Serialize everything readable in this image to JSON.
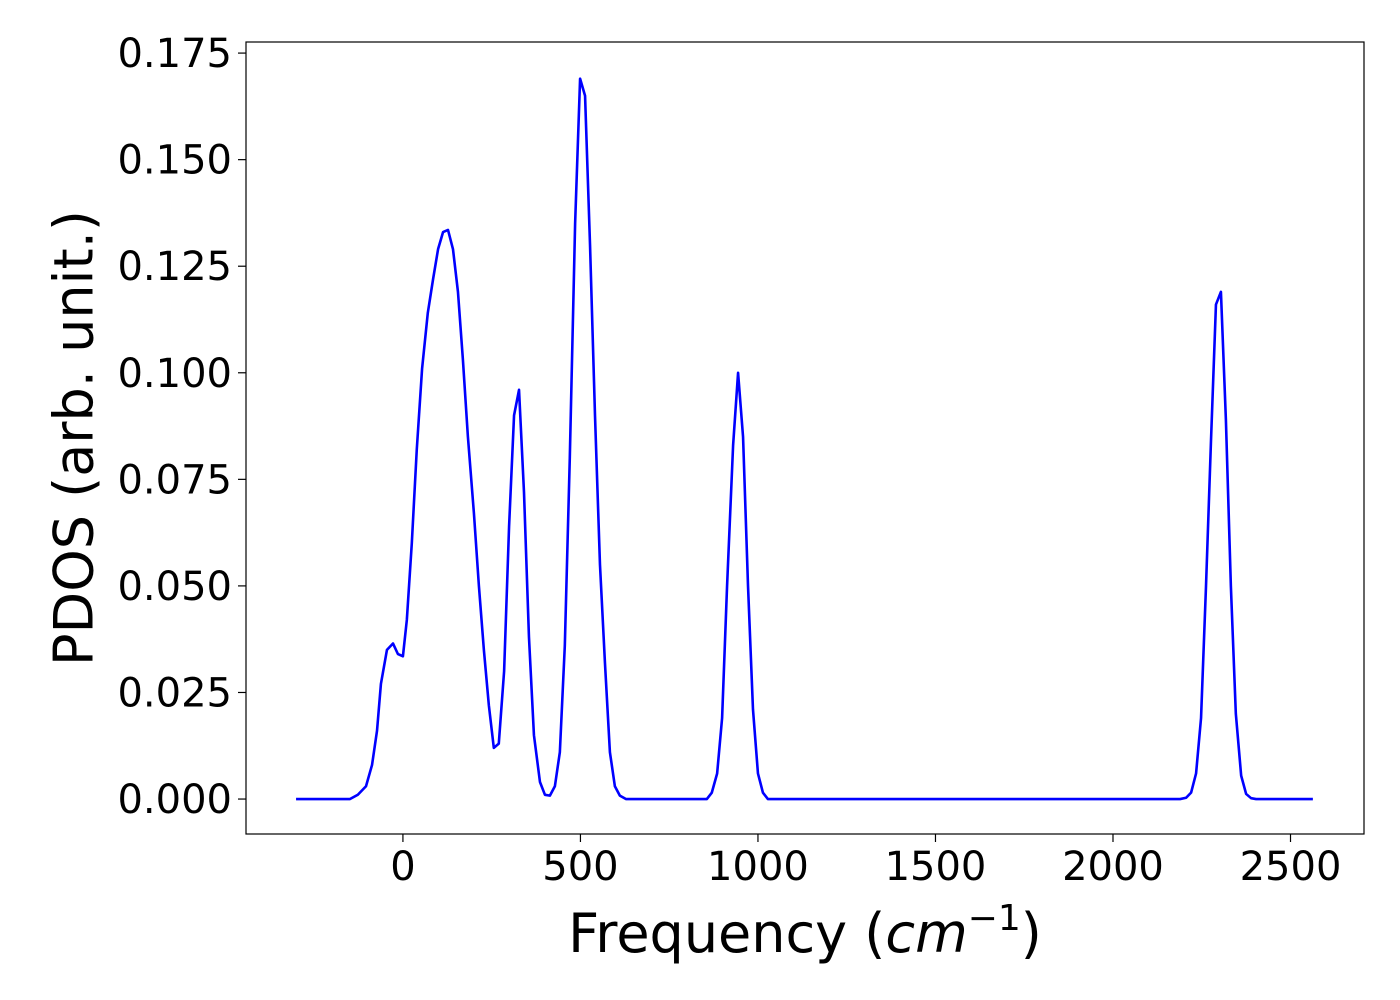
{
  "chart_data": {
    "type": "line",
    "x_label": [
      "Frequency (",
      "cm",
      "−1",
      ")"
    ],
    "y_label": "PDOS (arb. unit.)",
    "xlim": [
      -442,
      2707
    ],
    "ylim": [
      -0.0082,
      0.1776
    ],
    "xticks": [
      0,
      500,
      1000,
      1500,
      2000,
      2500
    ],
    "yticks": [
      {
        "value": 0,
        "label": "0.000"
      },
      {
        "value": 0.025,
        "label": "0.025"
      },
      {
        "value": 0.05,
        "label": "0.050"
      },
      {
        "value": 0.075,
        "label": "0.075"
      },
      {
        "value": 0.1,
        "label": "0.100"
      },
      {
        "value": 0.125,
        "label": "0.125"
      },
      {
        "value": 0.15,
        "label": "0.150"
      },
      {
        "value": 0.175,
        "label": "0.175"
      }
    ],
    "grid": false,
    "series": [
      {
        "color": "#0000ff",
        "x": [
          -301,
          -149,
          -127,
          -104,
          -87,
          -73,
          -62,
          -45,
          -28,
          -14,
          0,
          11,
          25,
          39,
          54,
          70,
          85,
          99,
          113,
          127,
          141,
          155,
          169,
          183,
          200,
          214,
          228,
          242,
          256,
          270,
          285,
          299,
          313,
          327,
          341,
          355,
          369,
          386,
          400,
          414,
          428,
          442,
          456,
          470,
          485,
          499,
          513,
          527,
          541,
          555,
          569,
          583,
          597,
          611,
          628,
          837,
          856,
          870,
          885,
          899,
          913,
          930,
          944,
          958,
          972,
          986,
          1000,
          1014,
          1028,
          2189,
          2206,
          2220,
          2234,
          2248,
          2262,
          2276,
          2290,
          2304,
          2318,
          2332,
          2346,
          2361,
          2375,
          2389,
          2403,
          2563
        ],
        "values": [
          0,
          0,
          0.001,
          0.003,
          0.008,
          0.016,
          0.027,
          0.035,
          0.0365,
          0.034,
          0.0335,
          0.042,
          0.06,
          0.082,
          0.101,
          0.114,
          0.122,
          0.129,
          0.133,
          0.1335,
          0.129,
          0.119,
          0.103,
          0.085,
          0.067,
          0.05,
          0.035,
          0.022,
          0.012,
          0.013,
          0.03,
          0.064,
          0.09,
          0.096,
          0.072,
          0.038,
          0.015,
          0.004,
          0.001,
          0.0008,
          0.003,
          0.011,
          0.036,
          0.08,
          0.135,
          0.169,
          0.165,
          0.13,
          0.09,
          0.055,
          0.032,
          0.011,
          0.003,
          0.0008,
          0,
          0,
          0,
          0.0015,
          0.006,
          0.019,
          0.05,
          0.083,
          0.1,
          0.085,
          0.05,
          0.021,
          0.006,
          0.0015,
          0,
          0,
          0.0003,
          0.0015,
          0.006,
          0.019,
          0.05,
          0.084,
          0.116,
          0.119,
          0.089,
          0.05,
          0.02,
          0.0055,
          0.0012,
          0.0002,
          0,
          0
        ]
      }
    ]
  }
}
